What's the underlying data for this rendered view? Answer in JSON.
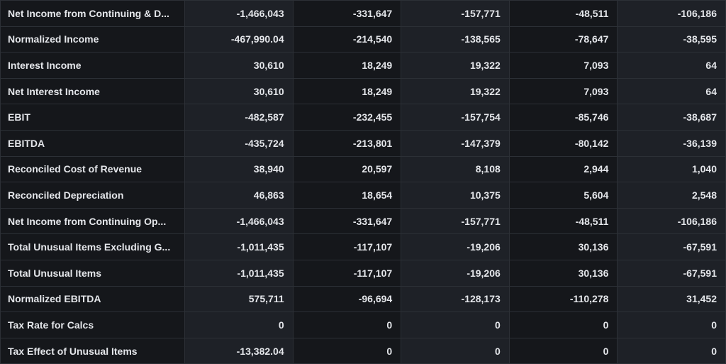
{
  "rows": [
    {
      "label": "Net Income from Continuing & D...",
      "values": [
        "-1,466,043",
        "-331,647",
        "-157,771",
        "-48,511",
        "-106,186"
      ]
    },
    {
      "label": "Normalized Income",
      "values": [
        "-467,990.04",
        "-214,540",
        "-138,565",
        "-78,647",
        "-38,595"
      ]
    },
    {
      "label": "Interest Income",
      "values": [
        "30,610",
        "18,249",
        "19,322",
        "7,093",
        "64"
      ]
    },
    {
      "label": "Net Interest Income",
      "values": [
        "30,610",
        "18,249",
        "19,322",
        "7,093",
        "64"
      ]
    },
    {
      "label": "EBIT",
      "values": [
        "-482,587",
        "-232,455",
        "-157,754",
        "-85,746",
        "-38,687"
      ]
    },
    {
      "label": "EBITDA",
      "values": [
        "-435,724",
        "-213,801",
        "-147,379",
        "-80,142",
        "-36,139"
      ]
    },
    {
      "label": "Reconciled Cost of Revenue",
      "values": [
        "38,940",
        "20,597",
        "8,108",
        "2,944",
        "1,040"
      ]
    },
    {
      "label": "Reconciled Depreciation",
      "values": [
        "46,863",
        "18,654",
        "10,375",
        "5,604",
        "2,548"
      ]
    },
    {
      "label": "Net Income from Continuing Op...",
      "values": [
        "-1,466,043",
        "-331,647",
        "-157,771",
        "-48,511",
        "-106,186"
      ]
    },
    {
      "label": "Total Unusual Items Excluding G...",
      "values": [
        "-1,011,435",
        "-117,107",
        "-19,206",
        "30,136",
        "-67,591"
      ]
    },
    {
      "label": "Total Unusual Items",
      "values": [
        "-1,011,435",
        "-117,107",
        "-19,206",
        "30,136",
        "-67,591"
      ]
    },
    {
      "label": "Normalized EBITDA",
      "values": [
        "575,711",
        "-96,694",
        "-128,173",
        "-110,278",
        "31,452"
      ]
    },
    {
      "label": "Tax Rate for Calcs",
      "values": [
        "0",
        "0",
        "0",
        "0",
        "0"
      ]
    },
    {
      "label": "Tax Effect of Unusual Items",
      "values": [
        "-13,382.04",
        "0",
        "0",
        "0",
        "0"
      ]
    }
  ]
}
